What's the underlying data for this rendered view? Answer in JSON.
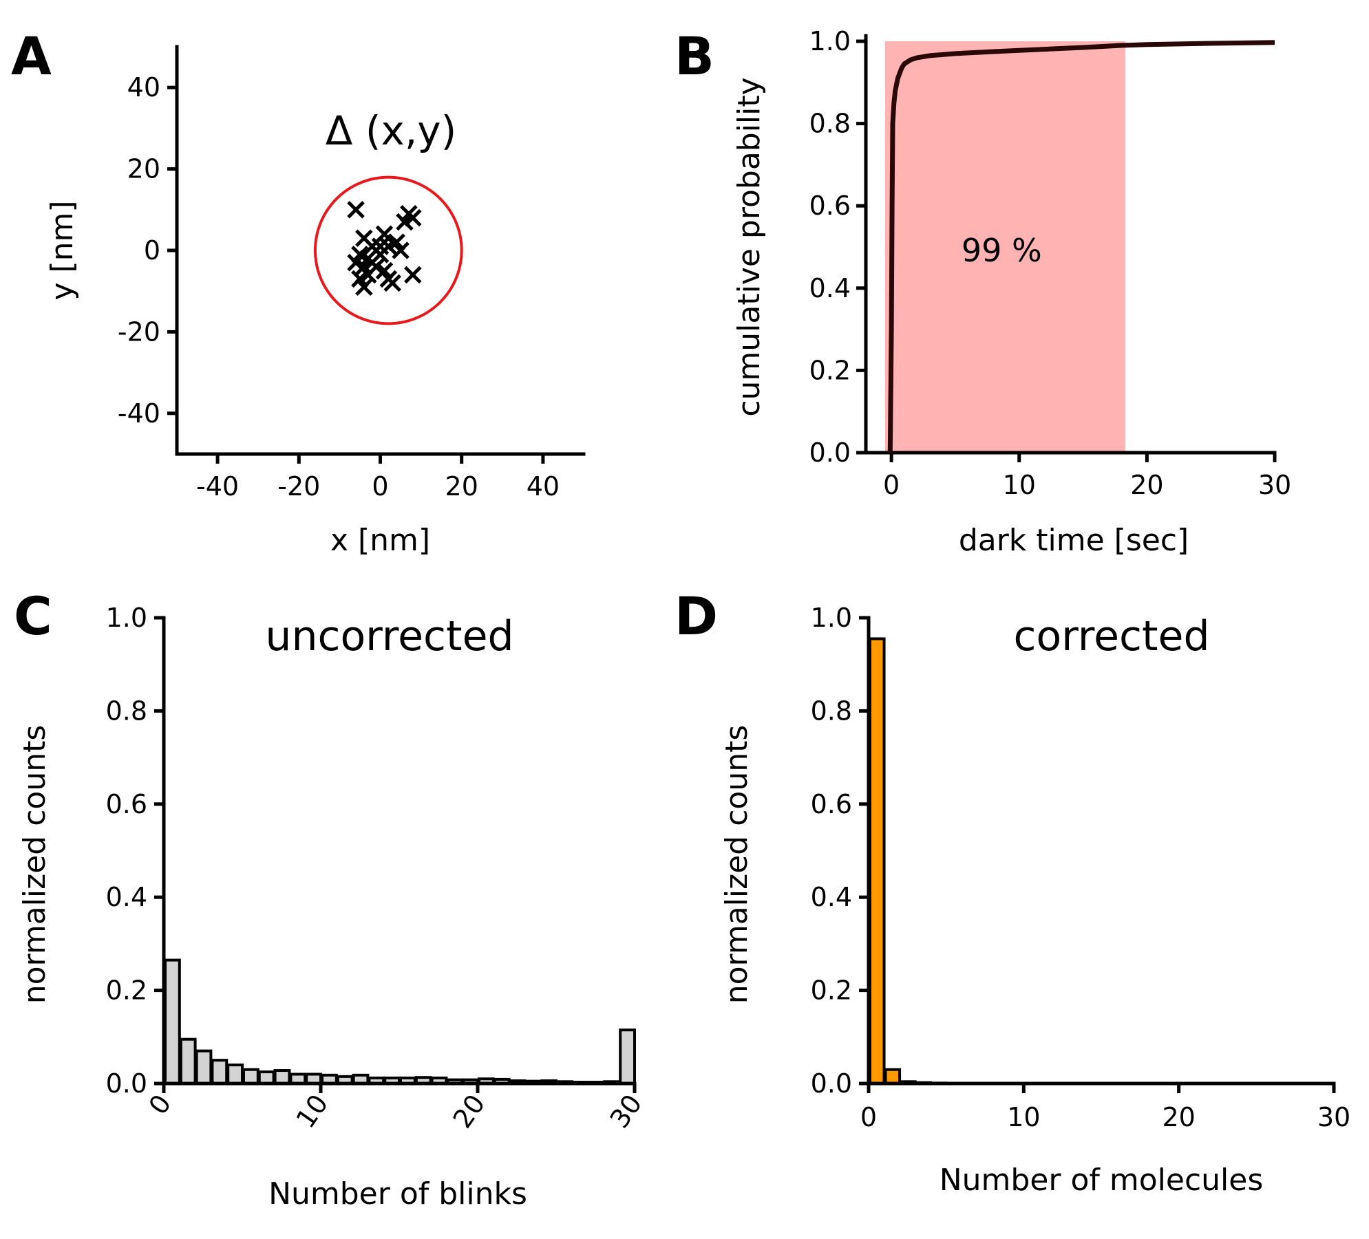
{
  "panels": {
    "A": {
      "letter": "A"
    },
    "B": {
      "letter": "B"
    },
    "C": {
      "letter": "C"
    },
    "D": {
      "letter": "D"
    }
  },
  "chart_data": [
    {
      "id": "A",
      "type": "scatter",
      "xlabel": "x [nm]",
      "ylabel": "y [nm]",
      "xlim": [
        -50,
        50
      ],
      "ylim": [
        -50,
        50
      ],
      "xticks": [
        -40,
        -20,
        0,
        20,
        40
      ],
      "yticks": [
        -40,
        -20,
        0,
        20,
        40
      ],
      "xtick_labels": [
        "-40",
        "-20",
        "0",
        "20",
        "40"
      ],
      "ytick_labels": [
        "-40",
        "-20",
        "0",
        "20",
        "40"
      ],
      "annotation": "Δ (x,y)",
      "circle": {
        "cx": 2,
        "cy": 0,
        "r": 18,
        "color": "#e8191d"
      },
      "points": [
        [
          -6,
          10
        ],
        [
          7,
          9
        ],
        [
          8,
          8
        ],
        [
          6,
          7
        ],
        [
          -4,
          3
        ],
        [
          1,
          4
        ],
        [
          -2,
          1
        ],
        [
          2,
          1
        ],
        [
          4,
          2
        ],
        [
          -5,
          -1
        ],
        [
          -3,
          -2
        ],
        [
          0,
          -1
        ],
        [
          5,
          0
        ],
        [
          -4,
          -4
        ],
        [
          -1,
          -4
        ],
        [
          1,
          -5
        ],
        [
          -6,
          -3
        ],
        [
          -3,
          -6
        ],
        [
          -5,
          -7
        ],
        [
          2,
          -7
        ],
        [
          3,
          -8
        ],
        [
          -4,
          -9
        ],
        [
          8,
          -6
        ],
        [
          -2,
          -3
        ],
        [
          0,
          1
        ]
      ]
    },
    {
      "id": "B",
      "type": "line",
      "xlabel": "dark time [sec]",
      "ylabel": "cumulative probability",
      "xlim": [
        -2,
        30
      ],
      "ylim": [
        0,
        1.0
      ],
      "xticks": [
        0,
        10,
        20,
        30
      ],
      "yticks": [
        0.0,
        0.2,
        0.4,
        0.6,
        0.8,
        1.0
      ],
      "xtick_labels": [
        "0",
        "10",
        "20",
        "30"
      ],
      "ytick_labels": [
        "0.0",
        "0.2",
        "0.4",
        "0.6",
        "0.8",
        "1.0"
      ],
      "shaded_region": {
        "x": [
          -0.5,
          18.3
        ],
        "y": [
          0,
          1.0
        ],
        "color": "#ffb3b3",
        "label": "99 %"
      },
      "line_color": "#2a0808",
      "series": [
        {
          "x": [
            -0.1,
            0.0,
            0.05,
            0.1,
            0.2,
            0.3,
            0.5,
            0.8,
            1.0,
            1.5,
            2.0,
            3.0,
            5.0,
            8.0,
            10.0,
            15.0,
            18.0,
            20.0,
            25.0,
            30.0
          ],
          "values": [
            0.0,
            0.3,
            0.6,
            0.8,
            0.85,
            0.88,
            0.91,
            0.935,
            0.945,
            0.955,
            0.96,
            0.965,
            0.97,
            0.975,
            0.978,
            0.985,
            0.99,
            0.992,
            0.995,
            0.997
          ]
        }
      ]
    },
    {
      "id": "C",
      "type": "bar",
      "title": "uncorrected",
      "xlabel": "Number of blinks",
      "ylabel": "normalized counts",
      "xlim": [
        0,
        30
      ],
      "ylim": [
        0,
        1.0
      ],
      "xticks": [
        0,
        10,
        20,
        30
      ],
      "yticks": [
        0.0,
        0.2,
        0.4,
        0.6,
        0.8,
        1.0
      ],
      "xtick_labels": [
        "0",
        "10",
        "20",
        "30"
      ],
      "ytick_labels": [
        "0.0",
        "0.2",
        "0.4",
        "0.6",
        "0.8",
        "1.0"
      ],
      "bar_color": "#d3d3d3",
      "categories": [
        1,
        2,
        3,
        4,
        5,
        6,
        7,
        8,
        9,
        10,
        11,
        12,
        13,
        14,
        15,
        16,
        17,
        18,
        19,
        20,
        21,
        22,
        23,
        24,
        25,
        26,
        27,
        28,
        29,
        30
      ],
      "values": [
        0.265,
        0.095,
        0.07,
        0.05,
        0.04,
        0.03,
        0.025,
        0.028,
        0.02,
        0.02,
        0.018,
        0.015,
        0.018,
        0.012,
        0.012,
        0.012,
        0.013,
        0.012,
        0.008,
        0.008,
        0.01,
        0.009,
        0.006,
        0.005,
        0.006,
        0.004,
        0.003,
        0.003,
        0.004,
        0.115
      ]
    },
    {
      "id": "D",
      "type": "bar",
      "title": "corrected",
      "xlabel": "Number of molecules",
      "ylabel": "normalized counts",
      "xlim": [
        0,
        30
      ],
      "ylim": [
        0,
        1.0
      ],
      "xticks": [
        0,
        10,
        20,
        30
      ],
      "yticks": [
        0.0,
        0.2,
        0.4,
        0.6,
        0.8,
        1.0
      ],
      "xtick_labels": [
        "0",
        "10",
        "20",
        "30"
      ],
      "ytick_labels": [
        "0.0",
        "0.2",
        "0.4",
        "0.6",
        "0.8",
        "1.0"
      ],
      "bar_color": "#ff9900",
      "categories": [
        1,
        2,
        3,
        4,
        5,
        6,
        7,
        8,
        9,
        10,
        11,
        12,
        13,
        14,
        15,
        16,
        17,
        18,
        19,
        20,
        21,
        22,
        23,
        24,
        25,
        26,
        27,
        28,
        29,
        30
      ],
      "values": [
        0.955,
        0.03,
        0.004,
        0.002,
        0.001,
        0,
        0,
        0,
        0,
        0,
        0,
        0,
        0,
        0,
        0,
        0,
        0,
        0,
        0,
        0,
        0,
        0,
        0,
        0,
        0,
        0,
        0,
        0,
        0,
        0
      ]
    }
  ]
}
